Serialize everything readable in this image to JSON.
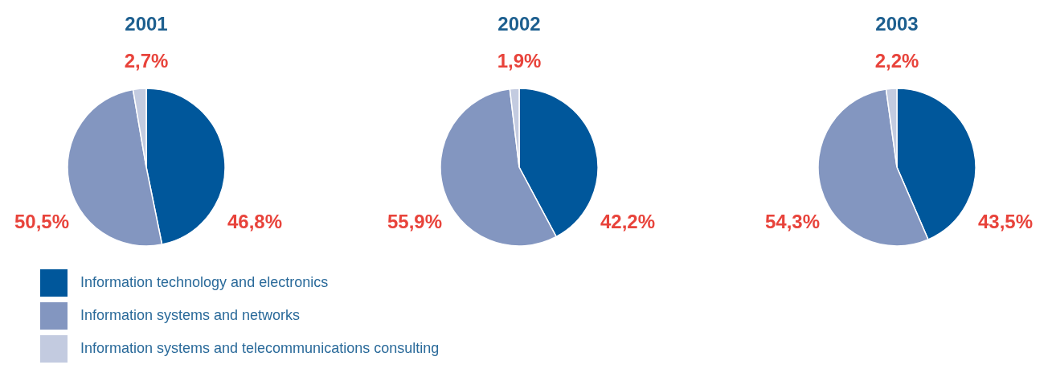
{
  "chart_data": [
    {
      "type": "pie",
      "title": "2001",
      "categories": [
        "Information technology and electronics",
        "Information systems and networks",
        "Information systems and telecommunications consulting"
      ],
      "values": [
        46.8,
        50.5,
        2.7
      ],
      "value_labels": [
        "46,8%",
        "50,5%",
        "2,7%"
      ],
      "colors": [
        "#00579b",
        "#8396c0",
        "#c3cbe0"
      ],
      "legend": "bottom right"
    },
    {
      "type": "pie",
      "title": "2002",
      "categories": [
        null,
        null,
        null
      ],
      "values": [
        42.2,
        55.9,
        1.9
      ],
      "value_labels": [
        "42,2%",
        "55,9%",
        "1,9%"
      ],
      "colors": [
        "#00579b",
        "#8396c0",
        "#c3cbe0"
      ]
    },
    {
      "type": "pie",
      "title": "2003",
      "categories": [
        null,
        null,
        null
      ],
      "values": [
        43.5,
        54.3,
        2.2
      ],
      "value_labels": [
        "43,5%",
        "54,3%",
        "2,2%"
      ],
      "colors": [
        "#00579b",
        "#8396c0",
        "#c3cbe0"
      ]
    }
  ]
}
